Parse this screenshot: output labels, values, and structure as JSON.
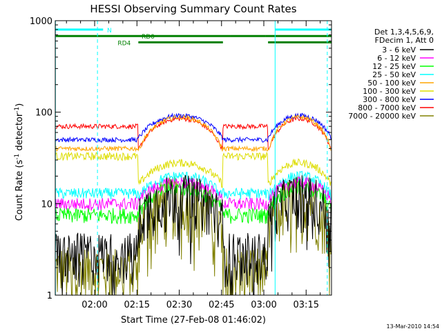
{
  "chart_data": {
    "type": "line",
    "title": "HESSI Observing Summary Count Rates",
    "xlabel": "Start Time (27-Feb-08 01:46:02)",
    "ylabel_main": "Count Rate (s",
    "ylabel_sup1": "-1",
    "ylabel_mid": " detector",
    "ylabel_sup2": "-1",
    "ylabel_end": ")",
    "yscale": "log",
    "ylim": [
      1,
      1000
    ],
    "y_ticks": [
      "1",
      "10",
      "100",
      "1000"
    ],
    "x_ticks": [
      "02:00",
      "02:15",
      "02:30",
      "02:45",
      "03:00",
      "03:15"
    ],
    "x_tick_minutes": [
      120,
      135,
      150,
      165,
      180,
      195
    ],
    "xlim_minutes": [
      106.03,
      204
    ],
    "legend_header": [
      "Det 1,3,4,5,6,9,",
      "FDecim 1, Att 0"
    ],
    "series": [
      {
        "name": "3 - 6 keV",
        "color": "#000000",
        "night": 3.0,
        "day_min": 7.0,
        "day_max": 13.0,
        "noise": 0.3
      },
      {
        "name": "6 - 12 keV",
        "color": "#ff00ff",
        "night": 10.0,
        "day_min": 11.0,
        "day_max": 17.0,
        "noise": 0.08
      },
      {
        "name": "12 - 25 keV",
        "color": "#00ff00",
        "night": 7.5,
        "day_min": 8.5,
        "day_max": 15.0,
        "noise": 0.1
      },
      {
        "name": "25 - 50 keV",
        "color": "#00ffff",
        "night": 13.0,
        "day_min": 12.0,
        "day_max": 20.0,
        "noise": 0.07
      },
      {
        "name": "50 - 100 keV",
        "color": "#ffa500",
        "night": 40.0,
        "day_min": 38.0,
        "day_max": 88.0,
        "noise": 0.03
      },
      {
        "name": "100 - 300 keV",
        "color": "#dddd00",
        "night": 33.0,
        "day_min": 16.0,
        "day_max": 28.0,
        "noise": 0.05
      },
      {
        "name": "300 - 800 keV",
        "color": "#0000ff",
        "night": 50.0,
        "day_min": 52.0,
        "day_max": 92.0,
        "noise": 0.03
      },
      {
        "name": "800 - 7000 keV",
        "color": "#ff0000",
        "night": 70.0,
        "day_min": 38.0,
        "day_max": 85.0,
        "noise": 0.03
      },
      {
        "name": "7000 - 20000 keV",
        "color": "#808000",
        "night": 2.0,
        "day_min": 5.0,
        "day_max": 12.0,
        "noise": 0.35
      }
    ],
    "night_intervals": [
      [
        106.03,
        135.5
      ],
      [
        165.5,
        181.5
      ]
    ],
    "day_intervals": [
      [
        135.5,
        165.5
      ],
      [
        181.5,
        204
      ]
    ],
    "vertical_markers": [
      {
        "minute": 106.1,
        "color": "#00ffff",
        "style": "solid"
      },
      {
        "minute": 121.0,
        "color": "#00ffff",
        "style": "dashed"
      },
      {
        "minute": 184.0,
        "color": "#00ffff",
        "style": "solid"
      },
      {
        "minute": 202.5,
        "color": "#00ffff",
        "style": "dashed"
      }
    ],
    "flag_bars": [
      {
        "label": "N",
        "color": "#00ffff",
        "y_value": 800,
        "segments": [
          [
            106.03,
            123.0
          ],
          [
            184.0,
            204
          ]
        ]
      },
      {
        "label": "RD0",
        "color": "#008000",
        "y_value": 680,
        "segments": [
          [
            106.03,
            168.0
          ],
          [
            168.0,
            180.5
          ],
          [
            180.5,
            204
          ]
        ]
      },
      {
        "label": "RD4",
        "color": "#008000",
        "y_value": 580,
        "segments": [
          [
            135.5,
            165.5
          ],
          [
            181.5,
            204
          ]
        ]
      }
    ]
  },
  "footer": {
    "timestamp": "13-Mar-2010 14:54"
  }
}
